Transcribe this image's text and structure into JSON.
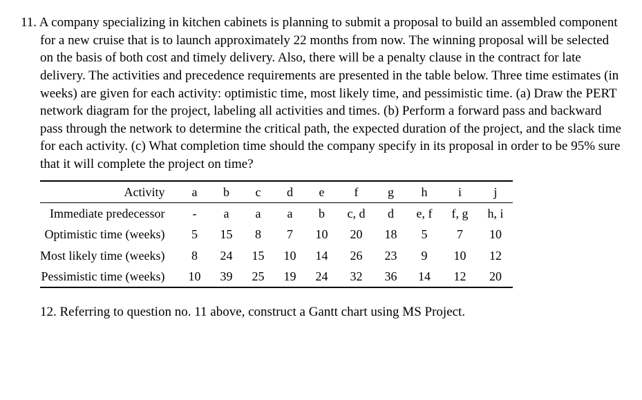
{
  "q11": {
    "number": "11.",
    "text": "A company specializing in kitchen cabinets  is planning to submit a proposal to build an assembled component for a new cruise that is to launch approximately 22 months from now. The winning proposal will be selected on the basis of both cost and timely delivery. Also, there will be a penalty clause in the contract for late delivery. The activities and precedence requirements are presented in the table below. Three time estimates (in weeks) are given for each activity: optimistic time, most likely time, and pessimistic time. (a) Draw the PERT network diagram for the project, labeling all activities and times. (b) Perform a forward pass and backward pass through the network to determine the critical path, the expected duration of the project, and the slack time for each activity. (c) What completion time should the company specify in its proposal in order to be 95% sure that it will complete the project on time?"
  },
  "table": {
    "header_label": "Activity",
    "activities": [
      "a",
      "b",
      "c",
      "d",
      "e",
      "f",
      "g",
      "h",
      "i",
      "j"
    ],
    "rows": [
      {
        "label": "Immediate predecessor",
        "vals": [
          "-",
          "a",
          "a",
          "a",
          "b",
          "c, d",
          "d",
          "e, f",
          "f, g",
          "h, i"
        ]
      },
      {
        "label": "Optimistic time (weeks)",
        "vals": [
          "5",
          "15",
          "8",
          "7",
          "10",
          "20",
          "18",
          "5",
          "7",
          "10"
        ]
      },
      {
        "label": "Most likely time (weeks)",
        "vals": [
          "8",
          "24",
          "15",
          "10",
          "14",
          "26",
          "23",
          "9",
          "10",
          "12"
        ]
      },
      {
        "label": "Pessimistic time (weeks)",
        "vals": [
          "10",
          "39",
          "25",
          "19",
          "24",
          "32",
          "36",
          "14",
          "12",
          "20"
        ]
      }
    ]
  },
  "q12": {
    "number": "12.",
    "text": "Referring to question no. 11 above, construct a Gantt chart using MS Project."
  }
}
